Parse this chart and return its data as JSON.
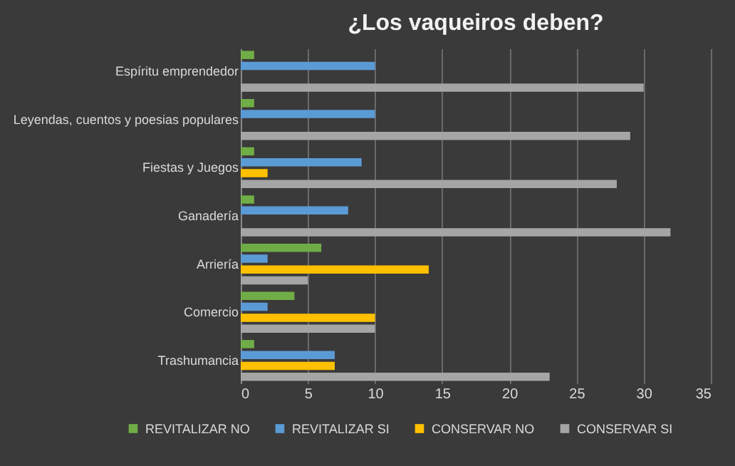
{
  "chart_data": {
    "type": "bar",
    "orientation": "horizontal",
    "title": "¿Los vaqueiros deben?",
    "categories": [
      "Espíritu emprendedor",
      "Leyendas, cuentos y poesias populares",
      "Fiestas y Juegos",
      "Ganadería",
      "Arriería",
      "Comercio",
      "Trashumancia"
    ],
    "series": [
      {
        "name": "REVITALIZAR NO",
        "color": "#70ad47",
        "values": [
          1,
          1,
          1,
          1,
          6,
          4,
          1
        ]
      },
      {
        "name": "REVITALIZAR SI",
        "color": "#5b9bd5",
        "values": [
          10,
          10,
          9,
          8,
          2,
          2,
          7
        ]
      },
      {
        "name": "CONSERVAR NO",
        "color": "#ffc000",
        "values": [
          0,
          0,
          2,
          0,
          14,
          10,
          7
        ]
      },
      {
        "name": "CONSERVAR SI",
        "color": "#a5a5a5",
        "values": [
          30,
          29,
          28,
          32,
          5,
          10,
          23
        ]
      }
    ],
    "xlim": [
      0,
      35
    ],
    "xticks": [
      0,
      5,
      10,
      15,
      20,
      25,
      30,
      35
    ],
    "grid": "x",
    "legend": "bottom"
  }
}
